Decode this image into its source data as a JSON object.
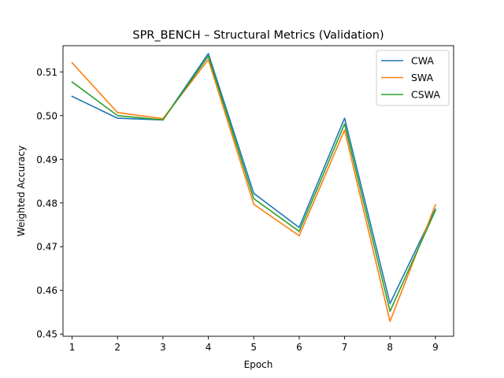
{
  "chart_data": {
    "type": "line",
    "title": "SPR_BENCH – Structural Metrics (Validation)",
    "xlabel": "Epoch",
    "ylabel": "Weighted Accuracy",
    "x": [
      1,
      2,
      3,
      4,
      5,
      6,
      7,
      8,
      9
    ],
    "xlim": [
      0.8,
      9.4
    ],
    "ylim": [
      0.4495,
      0.516
    ],
    "xticks": [
      "1",
      "2",
      "3",
      "4",
      "5",
      "6",
      "7",
      "8",
      "9"
    ],
    "yticks": [
      "0.45",
      "0.46",
      "0.47",
      "0.48",
      "0.49",
      "0.50",
      "0.51"
    ],
    "grid": false,
    "legend_position": "top-right",
    "series": [
      {
        "name": "CWA",
        "color": "#1f77b4",
        "values": [
          0.5044,
          0.4994,
          0.499,
          0.5142,
          0.4822,
          0.4744,
          0.4994,
          0.457,
          0.4786
        ]
      },
      {
        "name": "SWA",
        "color": "#ff7f0e",
        "values": [
          0.5121,
          0.5007,
          0.4993,
          0.5128,
          0.4797,
          0.4725,
          0.4967,
          0.4529,
          0.4796
        ]
      },
      {
        "name": "CSWA",
        "color": "#2ca02c",
        "values": [
          0.5077,
          0.5,
          0.499,
          0.5136,
          0.481,
          0.4735,
          0.4981,
          0.4552,
          0.4783
        ]
      }
    ]
  }
}
